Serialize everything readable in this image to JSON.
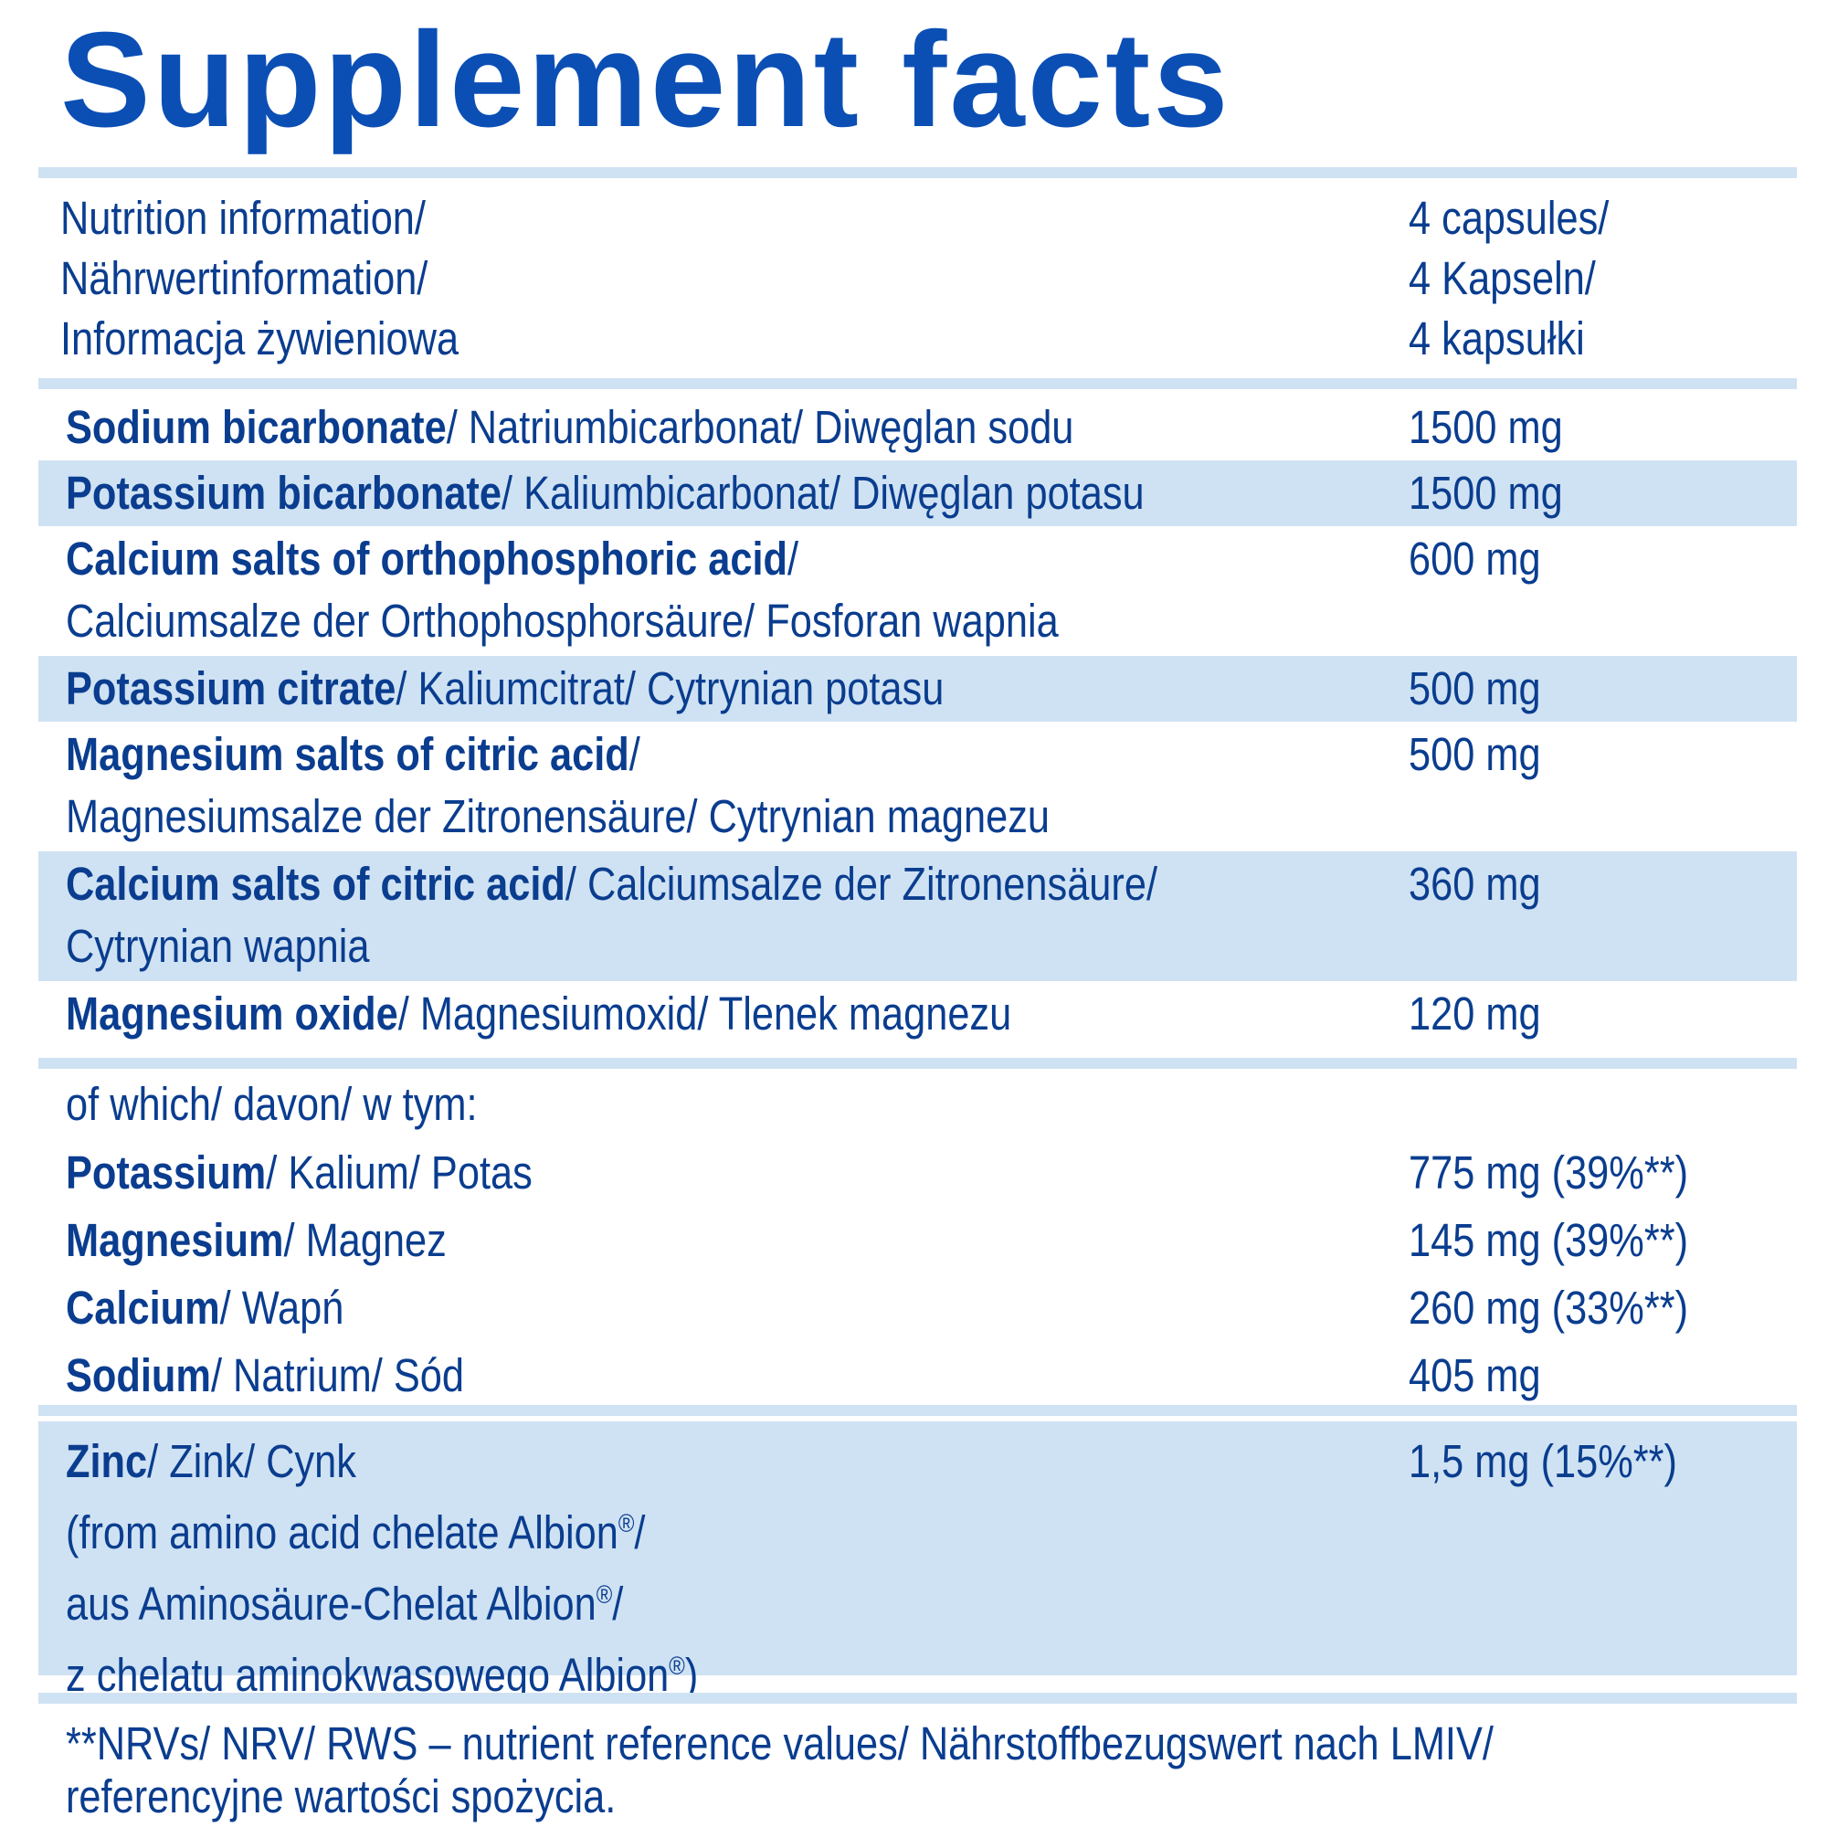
{
  "title": "Supplement facts",
  "header": {
    "label_lines": [
      "Nutrition information/",
      "Nährwertinformation/",
      "Informacja żywieniowa"
    ],
    "amount_lines": [
      "4 capsules/",
      "4 Kapseln/",
      "4 kapsułki"
    ]
  },
  "ingredients": [
    {
      "bold": "Sodium bicarbonate",
      "rest": "/ Natriumbicarbonat/ Diwęglan sodu",
      "line2": "",
      "amount": "1500 mg",
      "shaded": false
    },
    {
      "bold": "Potassium bicarbonate",
      "rest": "/ Kaliumbicarbonat/ Diwęglan potasu",
      "line2": "",
      "amount": "1500 mg",
      "shaded": true
    },
    {
      "bold": "Calcium salts of orthophosphoric acid",
      "rest": "/",
      "line2": "Calciumsalze der Orthophosphorsäure/ Fosforan wapnia",
      "amount": "600 mg",
      "shaded": false
    },
    {
      "bold": "Potassium citrate",
      "rest": "/ Kaliumcitrat/ Cytrynian potasu",
      "line2": "",
      "amount": "500 mg",
      "shaded": true
    },
    {
      "bold": "Magnesium salts of citric acid",
      "rest": "/",
      "line2": "Magnesiumsalze der Zitronensäure/ Cytrynian magnezu",
      "amount": "500 mg",
      "shaded": false
    },
    {
      "bold": "Calcium salts of citric acid",
      "rest": "/ Calciumsalze der Zitronensäure/",
      "line2": "Cytrynian wapnia",
      "amount": "360 mg",
      "shaded": true
    },
    {
      "bold": "Magnesium oxide",
      "rest": "/ Magnesiumoxid/ Tlenek magnezu",
      "line2": "",
      "amount": "120 mg",
      "shaded": false
    }
  ],
  "of_which": {
    "label": "of which/ davon/ w tym:",
    "items": [
      {
        "bold": "Potassium",
        "rest": "/ Kalium/ Potas",
        "amount": "775 mg (39%**)"
      },
      {
        "bold": "Magnesium",
        "rest": "/ Magnez",
        "amount": "145 mg (39%**)"
      },
      {
        "bold": "Calcium",
        "rest": "/ Wapń",
        "amount": "260 mg (33%**)"
      },
      {
        "bold": "Sodium",
        "rest": "/ Natrium/ Sód",
        "amount": "405 mg"
      }
    ]
  },
  "zinc": {
    "bold": "Zinc",
    "rest": "/ Zink/ Cynk",
    "amount": "1,5 mg (15%**)",
    "lines": [
      {
        "text": "(from amino acid chelate Albion",
        "tail": "/"
      },
      {
        "text": "aus Aminosäure-Chelat Albion",
        "tail": "/"
      },
      {
        "text": "z chelatu aminokwasowego Albion",
        "tail": ")"
      }
    ],
    "reg_mark": "®"
  },
  "footnote": [
    "**NRVs/ NRV/ RWS – nutrient reference values/ Nährstoffbezugswert nach LMIV/",
    "referencyjne wartości spożycia."
  ],
  "colors": {
    "text": "#0a3d8f",
    "title": "#0b4fb5",
    "shade": "#cfe2f3"
  }
}
